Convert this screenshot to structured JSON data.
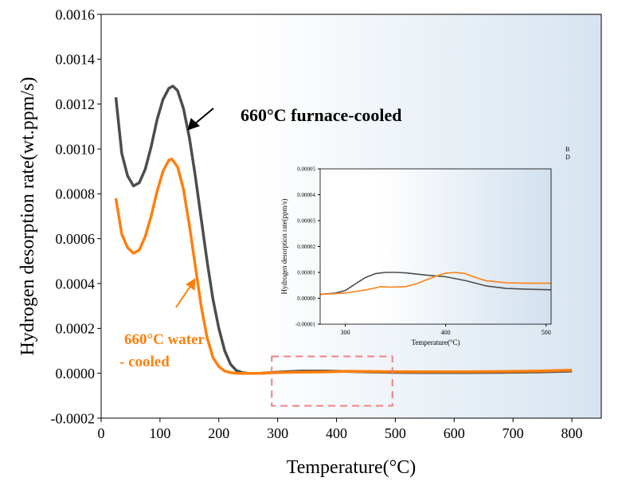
{
  "chart_data": [
    {
      "type": "line",
      "xlabel": "Temperature(°C)",
      "ylabel": "Hydrogen desorption rate(wt.ppm/s)",
      "xlim": [
        0,
        850
      ],
      "ylim": [
        -0.0002,
        0.0016
      ],
      "xticks": [
        "0",
        "100",
        "200",
        "300",
        "400",
        "500",
        "600",
        "700",
        "800"
      ],
      "yticks": [
        "-0.0002",
        "0.0000",
        "0.0002",
        "0.0004",
        "0.0006",
        "0.0008",
        "0.0010",
        "0.0012",
        "0.0014",
        "0.0016"
      ],
      "background": "gradient white-to-light-blue",
      "annotations": [
        {
          "text": "660°C furnace-cooled",
          "color": "#000000"
        },
        {
          "text": "660°C water",
          "color": "#FF7F0E"
        },
        {
          "text": "- cooled",
          "color": "#FF7F0E"
        }
      ],
      "zoom_box": {
        "x": [
          290,
          495
        ],
        "y": [
          -0.000145,
          7.5e-05
        ],
        "color": "#F08080"
      },
      "series": [
        {
          "color": "#4D4D4D",
          "x": [
            25,
            35,
            45,
            55,
            65,
            75,
            85,
            95,
            105,
            115,
            122,
            130,
            140,
            150,
            160,
            170,
            180,
            190,
            200,
            210,
            220,
            230,
            240,
            250,
            270,
            300,
            340,
            380,
            420,
            460,
            500,
            560,
            620,
            680,
            740,
            800
          ],
          "y": [
            0.00123,
            0.00098,
            0.00088,
            0.000835,
            0.00085,
            0.00091,
            0.00101,
            0.00113,
            0.00122,
            0.00127,
            0.00128,
            0.00126,
            0.00118,
            0.00105,
            0.00088,
            0.00069,
            0.0005,
            0.00033,
            0.0002,
            0.0001,
            4e-05,
            1.2e-05,
            3e-06,
            0.0,
            0.0,
            5e-06,
            1e-05,
            1e-05,
            8e-06,
            6e-06,
            4e-06,
            3e-06,
            3e-06,
            4e-06,
            6e-06,
            1e-05
          ]
        },
        {
          "color": "#FF7F0E",
          "x": [
            25,
            35,
            45,
            55,
            65,
            75,
            85,
            95,
            105,
            115,
            120,
            130,
            140,
            150,
            160,
            170,
            180,
            190,
            200,
            210,
            220,
            230,
            240,
            250,
            270,
            300,
            340,
            380,
            420,
            460,
            500,
            560,
            620,
            680,
            740,
            800
          ],
          "y": [
            0.00078,
            0.00062,
            0.00056,
            0.000535,
            0.00055,
            0.00061,
            0.0007,
            0.00081,
            0.0009,
            0.00095,
            0.000955,
            0.00092,
            0.00082,
            0.00066,
            0.00048,
            0.0003,
            0.00016,
            7e-05,
            3e-05,
            1e-05,
            3e-06,
            0.0,
            0.0,
            0.0,
            0.0,
            3e-06,
            5e-06,
            6e-06,
            9e-06,
            8e-06,
            7e-06,
            7e-06,
            7e-06,
            8e-06,
            1e-05,
            1.4e-05
          ]
        }
      ]
    },
    {
      "type": "line",
      "xlabel": "Temperature(°C)",
      "ylabel": "Hydrogen desorption rate(ppm/s)",
      "xlim": [
        275,
        505
      ],
      "ylim": [
        -1e-05,
        5e-05
      ],
      "xticks": [
        "300",
        "400",
        "500"
      ],
      "yticks": [
        "-0.00001",
        "0.00000",
        "0.00001",
        "0.00002",
        "0.00003",
        "0.00004",
        "0.00005"
      ],
      "legend_labels": [
        "B",
        "D"
      ],
      "series": [
        {
          "color": "#4D4D4D",
          "x": [
            275,
            290,
            300,
            310,
            320,
            330,
            340,
            350,
            360,
            380,
            400,
            420,
            440,
            460,
            480,
            505
          ],
          "y": [
            1.5e-06,
            2e-06,
            3e-06,
            5.5e-06,
            8e-06,
            9.5e-06,
            1e-05,
            1e-05,
            9.8e-06,
            9e-06,
            8.3e-06,
            6.8e-06,
            4.8e-06,
            3.8e-06,
            3.5e-06,
            3.3e-06
          ]
        },
        {
          "color": "#FF7F0E",
          "x": [
            275,
            300,
            320,
            330,
            335,
            345,
            360,
            370,
            380,
            390,
            400,
            410,
            420,
            430,
            440,
            460,
            480,
            505
          ],
          "y": [
            1.5e-06,
            2e-06,
            3.2e-06,
            4e-06,
            4.5e-06,
            4.3e-06,
            4.5e-06,
            5.5e-06,
            7e-06,
            8.5e-06,
            9.7e-06,
            1e-05,
            9.5e-06,
            8e-06,
            6.8e-06,
            6e-06,
            5.8e-06,
            5.8e-06
          ]
        }
      ]
    }
  ]
}
